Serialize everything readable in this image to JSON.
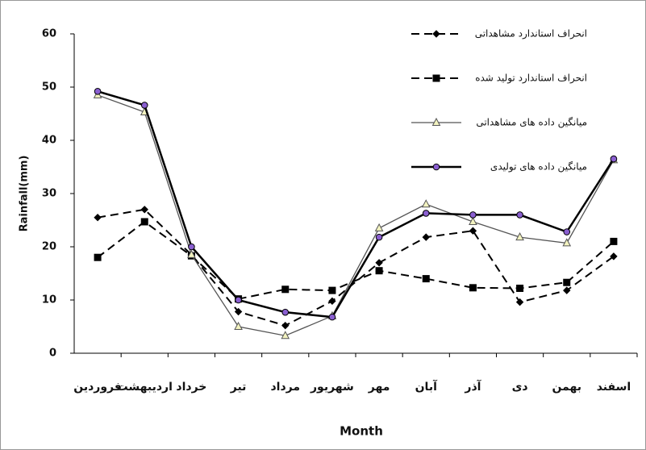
{
  "chart_data": {
    "type": "line",
    "y_label": "Rainfall(mm)",
    "x_label": "Month",
    "categories": [
      "فروردین",
      "اردیبهشت",
      "خرداد",
      "تیر",
      "مرداد",
      "شهریور",
      "مهر",
      "آبان",
      "آذر",
      "دی",
      "بهمن",
      "اسفند"
    ],
    "ylim": [
      0,
      60
    ],
    "yticks": [
      0,
      10,
      20,
      30,
      40,
      50,
      60
    ],
    "series": [
      {
        "name": "انحراف استاندارد مشاهداتی",
        "color": "#000000",
        "dash": true,
        "width": 2,
        "marker": "diamond",
        "marker_fill": "#000000",
        "values": [
          25.5,
          27,
          18.5,
          7.8,
          5.2,
          9.8,
          17,
          21.8,
          23,
          9.6,
          11.8,
          18.2
        ]
      },
      {
        "name": "انحراف استاندارد تولید شده",
        "color": "#000000",
        "dash": true,
        "width": 2,
        "marker": "square",
        "marker_fill": "#000000",
        "values": [
          18,
          24.7,
          18.3,
          10.2,
          12,
          11.8,
          15.5,
          14,
          12.3,
          12.2,
          13.3,
          21
        ]
      },
      {
        "name": "میانگین داده های مشاهداتی",
        "color": "#555555",
        "dash": false,
        "width": 1.3,
        "marker": "triangle",
        "marker_fill": "#f3f3c0",
        "values": [
          48.5,
          45.3,
          18.5,
          5,
          3.3,
          7,
          23.5,
          28,
          24.7,
          21.8,
          20.7,
          36.3
        ]
      },
      {
        "name": "میانگین داده های تولیدی",
        "color": "#000000",
        "dash": false,
        "width": 2.5,
        "marker": "circle",
        "marker_fill": "#8a5fd0",
        "values": [
          49.2,
          46.6,
          20,
          10,
          7.7,
          6.8,
          21.8,
          26.3,
          26,
          26,
          22.8,
          36.5
        ]
      }
    ]
  }
}
